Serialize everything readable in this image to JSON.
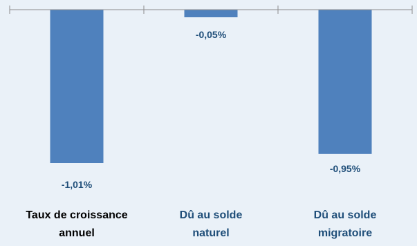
{
  "chart_data": {
    "type": "bar",
    "categories": [
      {
        "lines": [
          "Taux de croissance",
          "annuel"
        ],
        "color": "#000000"
      },
      {
        "lines": [
          "Dû au solde",
          "naturel"
        ],
        "color": "#1f4e79"
      },
      {
        "lines": [
          "Dû au solde",
          "migratoire"
        ],
        "color": "#1f4e79"
      }
    ],
    "values": [
      -1.01,
      -0.05,
      -0.95
    ],
    "value_labels": [
      "-1,01%",
      "-0,05%",
      "-0,95%"
    ],
    "ylim": [
      -1.01,
      0
    ],
    "bar_color": "#4f81bd",
    "axis_color": "#8c8c8c",
    "background": "#eaf1f8",
    "gridlines": false,
    "legend": "none"
  }
}
